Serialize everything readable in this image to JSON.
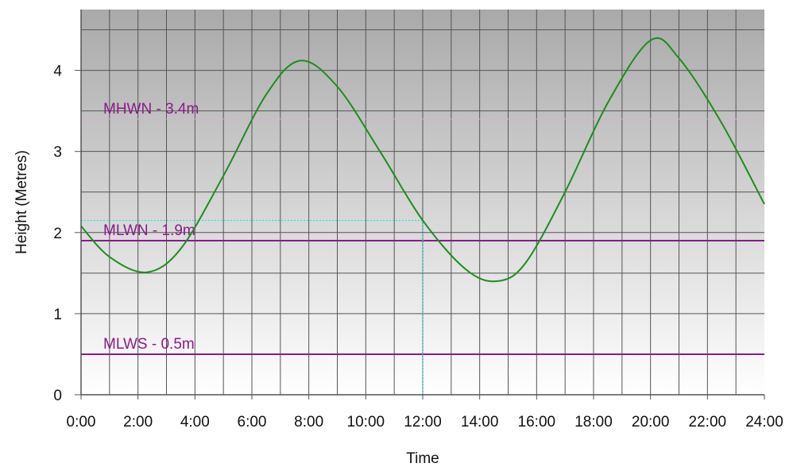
{
  "chart_data": {
    "type": "line",
    "xlabel": "Time",
    "ylabel": "Height (Metres)",
    "xlim": [
      0,
      24
    ],
    "ylim": [
      0,
      4.75
    ],
    "x_ticks": [
      0,
      2,
      4,
      6,
      8,
      10,
      12,
      14,
      16,
      18,
      20,
      22,
      24
    ],
    "x_tick_labels": [
      "0:00",
      "2:00",
      "4:00",
      "6:00",
      "8:00",
      "10:00",
      "12:00",
      "14:00",
      "16:00",
      "18:00",
      "20:00",
      "22:00",
      "24:00"
    ],
    "y_ticks": [
      0,
      1,
      2,
      3,
      4
    ],
    "y_tick_labels": [
      "0",
      "1",
      "2",
      "3",
      "4"
    ],
    "grid": true,
    "series": [
      {
        "color": "#1e8c1e",
        "points": [
          [
            0,
            2.08
          ],
          [
            1,
            1.7
          ],
          [
            2.3,
            1.51
          ],
          [
            3.5,
            1.8
          ],
          [
            5,
            2.7
          ],
          [
            6.5,
            3.7
          ],
          [
            7.7,
            4.12
          ],
          [
            9,
            3.8
          ],
          [
            10.5,
            3.0
          ],
          [
            12,
            2.15
          ],
          [
            13.5,
            1.55
          ],
          [
            14.6,
            1.4
          ],
          [
            15.6,
            1.62
          ],
          [
            17,
            2.5
          ],
          [
            18.5,
            3.6
          ],
          [
            20,
            4.37
          ],
          [
            21,
            4.15
          ],
          [
            22.5,
            3.35
          ],
          [
            24,
            2.35
          ]
        ]
      }
    ],
    "reference_lines": [
      {
        "label": "MHWN - 3.4m",
        "value": 3.4,
        "color": "#d2b4d2"
      },
      {
        "label": "MLWN - 1.9m",
        "value": 1.9,
        "color": "#8b1a8b"
      },
      {
        "label": "MLWS - 0.5m",
        "value": 0.5,
        "color": "#8b1a8b"
      }
    ],
    "crosshair": {
      "x": 12,
      "y": 2.15,
      "color": "#33dddd"
    }
  }
}
